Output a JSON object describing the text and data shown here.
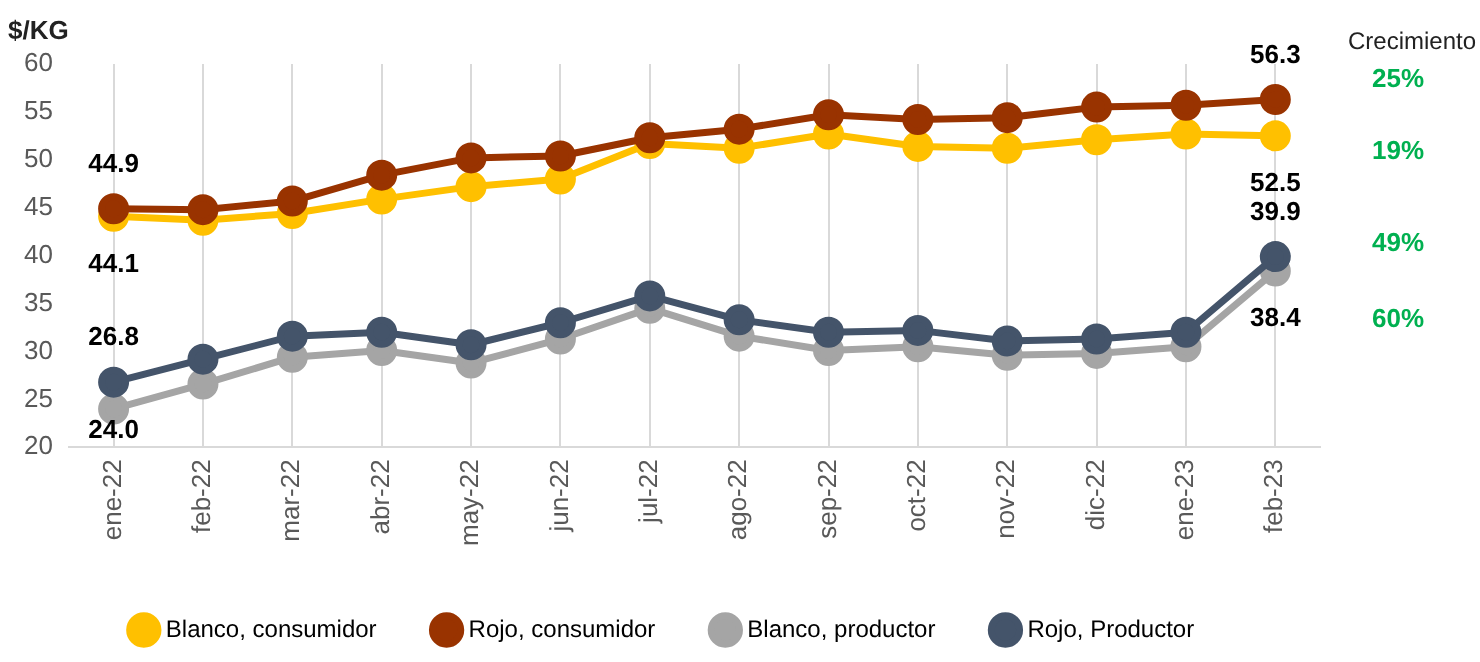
{
  "chart_data": {
    "type": "line",
    "ylabel": "$/KG",
    "categories": [
      "ene-22",
      "feb-22",
      "mar-22",
      "abr-22",
      "may-22",
      "jun-22",
      "jul-22",
      "ago-22",
      "sep-22",
      "oct-22",
      "nov-22",
      "dic-22",
      "ene-23",
      "feb-23"
    ],
    "series": [
      {
        "name": "Blanco, consumidor",
        "color": "#ffc000",
        "values": [
          44.1,
          43.7,
          44.4,
          45.9,
          47.2,
          48.0,
          51.7,
          51.2,
          52.7,
          51.4,
          51.2,
          52.1,
          52.7,
          52.5
        ],
        "value_labels": [
          "44.1",
          null,
          null,
          null,
          null,
          null,
          null,
          null,
          null,
          null,
          null,
          null,
          null,
          "52.5"
        ]
      },
      {
        "name": "Rojo, consumidor",
        "color": "#993300",
        "values": [
          44.9,
          44.8,
          45.7,
          48.4,
          50.2,
          50.4,
          52.3,
          53.2,
          54.7,
          54.2,
          54.4,
          55.5,
          55.7,
          56.3
        ],
        "value_labels": [
          "44.9",
          null,
          null,
          null,
          null,
          null,
          null,
          null,
          null,
          null,
          null,
          null,
          null,
          "56.3"
        ]
      },
      {
        "name": "Blanco, productor",
        "color": "#a5a5a5",
        "values": [
          24.0,
          26.6,
          29.4,
          30.1,
          28.8,
          31.3,
          34.5,
          31.6,
          30.1,
          30.5,
          29.6,
          29.8,
          30.5,
          38.4
        ],
        "value_labels": [
          "24.0",
          null,
          null,
          null,
          null,
          null,
          null,
          null,
          null,
          null,
          null,
          null,
          null,
          "38.4"
        ]
      },
      {
        "name": "Rojo, Productor",
        "color": "#44546a",
        "values": [
          26.8,
          29.2,
          31.6,
          32.0,
          30.7,
          33.0,
          35.8,
          33.3,
          32.0,
          32.2,
          31.1,
          31.3,
          32.0,
          39.9
        ],
        "value_labels": [
          "26.8",
          null,
          null,
          null,
          null,
          null,
          null,
          null,
          null,
          null,
          null,
          null,
          null,
          "39.9"
        ]
      }
    ],
    "ylim": [
      20,
      60
    ],
    "yticks": [
      20,
      25,
      30,
      35,
      40,
      45,
      50,
      55,
      60
    ],
    "grid": "x",
    "legend": "bottom",
    "marker": "circle",
    "line_style": "solid",
    "annotations": [
      "Crecimiento",
      "25%",
      "19%",
      "49%",
      "60%"
    ]
  }
}
